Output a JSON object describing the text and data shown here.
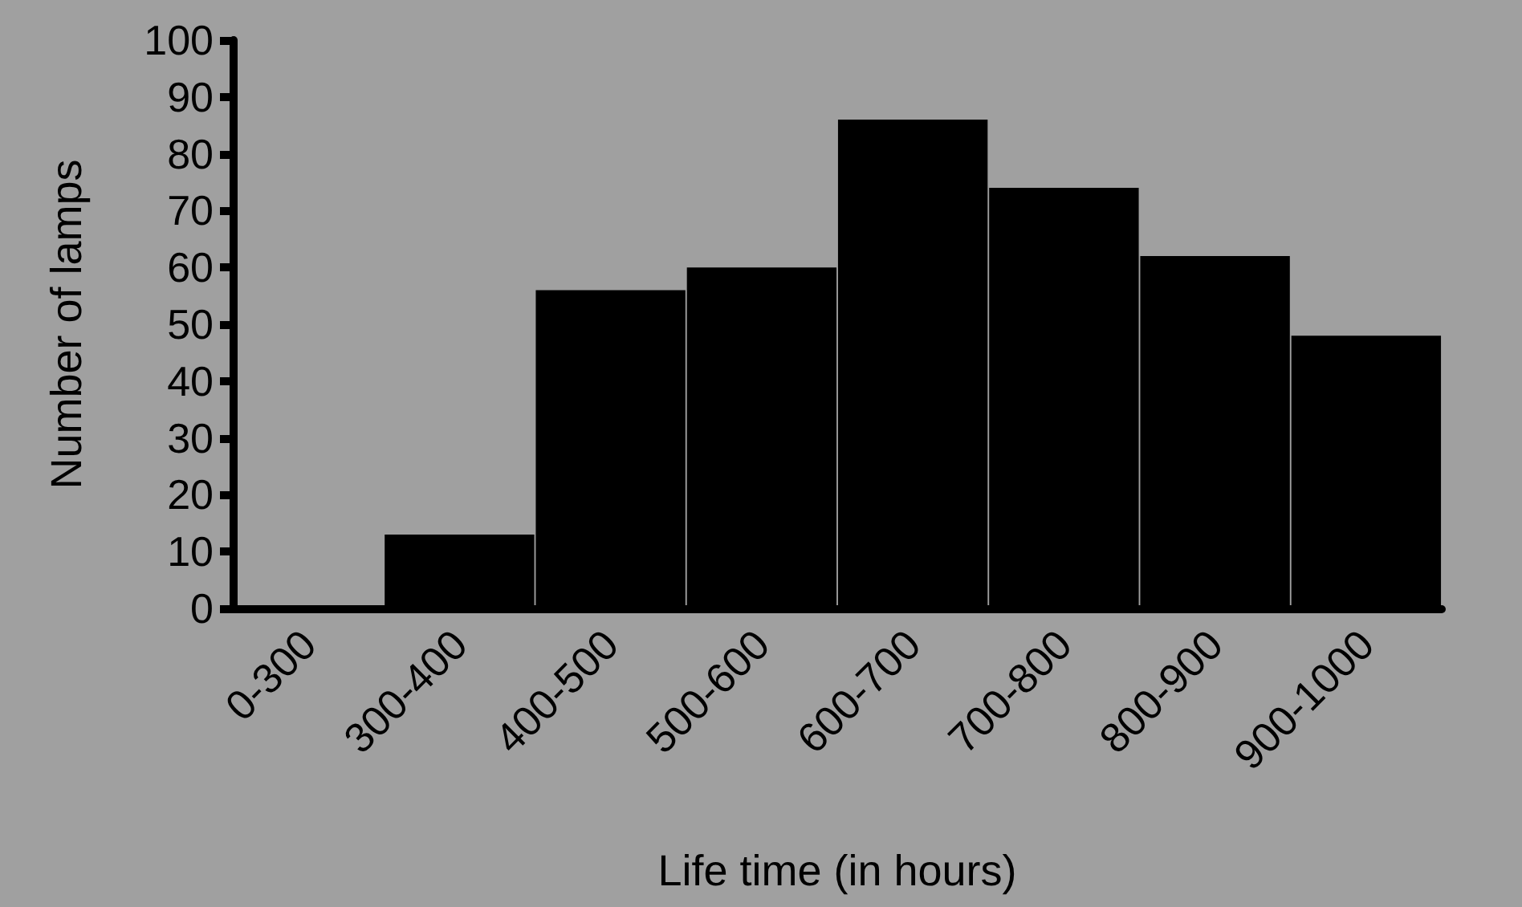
{
  "chart_data": {
    "type": "bar",
    "xlabel": "Life time (in hours)",
    "ylabel": "Number of lamps",
    "categories": [
      "0-300",
      "300-400",
      "400-500",
      "500-600",
      "600-700",
      "700-800",
      "800-900",
      "900-1000"
    ],
    "values": [
      0,
      13,
      56,
      60,
      86,
      74,
      62,
      48
    ],
    "color": "#000000",
    "ylim": [
      0,
      100
    ],
    "yticks": [
      0,
      10,
      20,
      30,
      40,
      50,
      60,
      70,
      80,
      90,
      100
    ],
    "grid": false
  }
}
